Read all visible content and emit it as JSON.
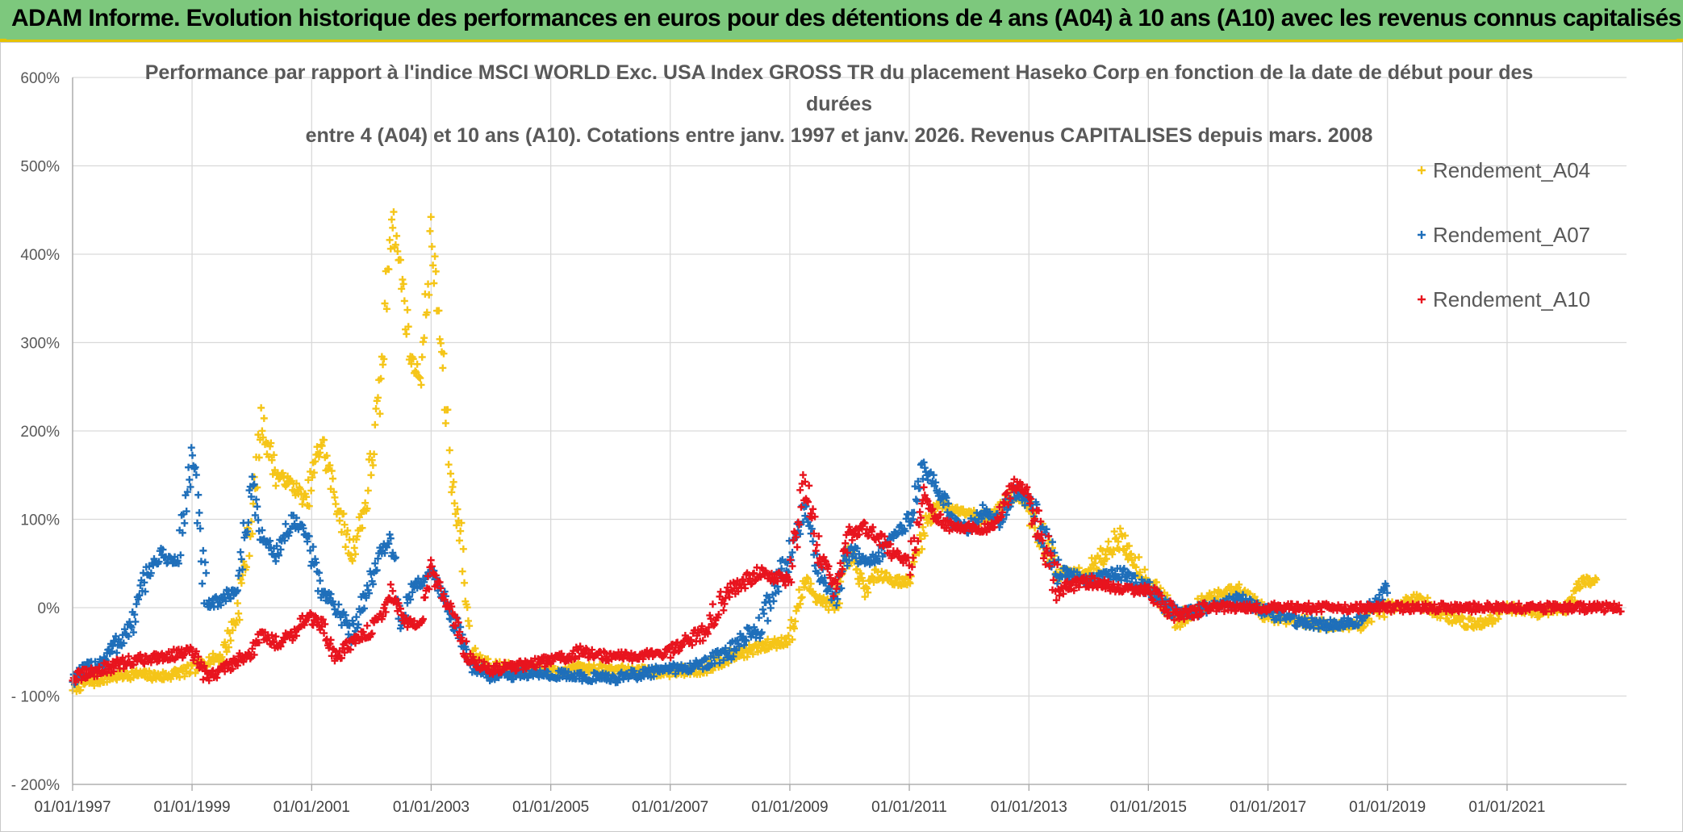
{
  "header": {
    "title": "ADAM Informe. Evolution historique des performances en euros pour des détentions de 4 ans (A04) à 10 ans (A10) avec les revenus connus capitalisés"
  },
  "chart_data": {
    "type": "scatter",
    "title_lines": [
      "Performance par rapport à l'indice MSCI WORLD Exc. USA Index GROSS TR  du placement Haseko Corp en fonction de la date de début pour des",
      "durées",
      "entre 4 (A04) et 10 ans (A10). Cotations entre janv. 1997 et janv. 2026. Revenus CAPITALISES depuis mars. 2008"
    ],
    "xlabel": "",
    "ylabel": "",
    "x_ticks": [
      "01/01/1997",
      "01/01/1999",
      "01/01/2001",
      "01/01/2003",
      "01/01/2005",
      "01/01/2007",
      "01/01/2009",
      "01/01/2011",
      "01/01/2013",
      "01/01/2015",
      "01/01/2017",
      "01/01/2019",
      "01/01/2021"
    ],
    "xlim": [
      "1997-01-01",
      "2023-01-01"
    ],
    "y_ticks": [
      "600%",
      "500%",
      "400%",
      "300%",
      "200%",
      "100%",
      "0%",
      "- 100%",
      "- 200%"
    ],
    "ylim": [
      -200,
      600
    ],
    "grid": true,
    "legend_position": "top-right",
    "series": [
      {
        "name": "Rendement_A04",
        "color": "#f5c518",
        "points": [
          [
            "1997-01",
            "-90"
          ],
          [
            "1997-07",
            "-80"
          ],
          [
            "1998-01",
            "-75"
          ],
          [
            "1998-07",
            "-78"
          ],
          [
            "1999-01",
            "-70"
          ],
          [
            "1999-04",
            "-60"
          ],
          [
            "1999-07",
            "-55"
          ],
          [
            "1999-10",
            "-10"
          ],
          [
            "2000-01",
            "100"
          ],
          [
            "2000-03",
            "210"
          ],
          [
            "2000-06",
            "150"
          ],
          [
            "2000-09",
            "140"
          ],
          [
            "2000-12",
            "120"
          ],
          [
            "2001-03",
            "190"
          ],
          [
            "2001-06",
            "120"
          ],
          [
            "2001-09",
            "60"
          ],
          [
            "2001-12",
            "120"
          ],
          [
            "2002-03",
            "250"
          ],
          [
            "2002-05",
            "450"
          ],
          [
            "2002-07",
            "380"
          ],
          [
            "2002-09",
            "280"
          ],
          [
            "2002-11",
            "260"
          ],
          [
            "2003-01",
            "420"
          ],
          [
            "2003-03",
            "300"
          ],
          [
            "2003-05",
            "150"
          ],
          [
            "2003-07",
            "80"
          ],
          [
            "2003-09",
            "-50"
          ],
          [
            "2004-01",
            "-65"
          ],
          [
            "2004-07",
            "-70"
          ],
          [
            "2005-01",
            "-72"
          ],
          [
            "2005-07",
            "-68"
          ],
          [
            "2006-01",
            "-70"
          ],
          [
            "2006-07",
            "-72"
          ],
          [
            "2007-01",
            "-73"
          ],
          [
            "2007-07",
            "-70"
          ],
          [
            "2008-01",
            "-55"
          ],
          [
            "2008-07",
            "-45"
          ],
          [
            "2009-01",
            "-35"
          ],
          [
            "2009-04",
            "30"
          ],
          [
            "2009-07",
            "10"
          ],
          [
            "2009-10",
            "0"
          ],
          [
            "2010-01",
            "60"
          ],
          [
            "2010-04",
            "20"
          ],
          [
            "2010-07",
            "40"
          ],
          [
            "2010-10",
            "30"
          ],
          [
            "2011-01",
            "30"
          ],
          [
            "2011-04",
            "90"
          ],
          [
            "2011-07",
            "120"
          ],
          [
            "2011-10",
            "110"
          ],
          [
            "2012-01",
            "110"
          ],
          [
            "2012-04",
            "100"
          ],
          [
            "2012-07",
            "110"
          ],
          [
            "2012-10",
            "130"
          ],
          [
            "2013-01",
            "110"
          ],
          [
            "2013-07",
            "40"
          ],
          [
            "2014-01",
            "40"
          ],
          [
            "2014-07",
            "80"
          ],
          [
            "2015-01",
            "30"
          ],
          [
            "2015-07",
            "-15"
          ],
          [
            "2016-01",
            "10"
          ],
          [
            "2016-07",
            "20"
          ],
          [
            "2017-01",
            "-10"
          ],
          [
            "2017-07",
            "-15"
          ],
          [
            "2018-01",
            "-20"
          ],
          [
            "2018-07",
            "-20"
          ],
          [
            "2019-01",
            "0"
          ],
          [
            "2019-07",
            "10"
          ],
          [
            "2020-01",
            "-10"
          ],
          [
            "2020-07",
            "-20"
          ],
          [
            "2021-01",
            "0"
          ],
          [
            "2021-07",
            "-5"
          ],
          [
            "2022-01",
            "0"
          ],
          [
            "2022-04",
            "30"
          ],
          [
            "2022-07",
            "30"
          ]
        ]
      },
      {
        "name": "Rendement_A07",
        "color": "#1f6fba",
        "points": [
          [
            "1997-01",
            "-80"
          ],
          [
            "1997-07",
            "-60"
          ],
          [
            "1998-01",
            "-20"
          ],
          [
            "1998-04",
            "40"
          ],
          [
            "1998-07",
            "60"
          ],
          [
            "1998-10",
            "50"
          ],
          [
            "1999-01",
            "170"
          ],
          [
            "1999-04",
            "0"
          ],
          [
            "1999-07",
            "10"
          ],
          [
            "1999-10",
            "20"
          ],
          [
            "2000-01",
            "140"
          ],
          [
            "2000-03",
            "80"
          ],
          [
            "2000-06",
            "60"
          ],
          [
            "2000-09",
            "100"
          ],
          [
            "2000-12",
            "80"
          ],
          [
            "2001-03",
            "20"
          ],
          [
            "2001-06",
            "0"
          ],
          [
            "2001-09",
            "-30"
          ],
          [
            "2001-12",
            "20"
          ],
          [
            "2002-03",
            "60"
          ],
          [
            "2002-05",
            "80"
          ],
          [
            "2002-07",
            "-20"
          ],
          [
            "2002-09",
            "20"
          ],
          [
            "2002-11",
            "30"
          ],
          [
            "2003-01",
            "40"
          ],
          [
            "2003-03",
            "20"
          ],
          [
            "2003-06",
            "-20"
          ],
          [
            "2003-09",
            "-65"
          ],
          [
            "2004-01",
            "-78"
          ],
          [
            "2004-07",
            "-75"
          ],
          [
            "2005-01",
            "-75"
          ],
          [
            "2005-07",
            "-78"
          ],
          [
            "2006-01",
            "-80"
          ],
          [
            "2006-07",
            "-75"
          ],
          [
            "2007-01",
            "-70"
          ],
          [
            "2007-07",
            "-65"
          ],
          [
            "2008-01",
            "-50"
          ],
          [
            "2008-07",
            "-20"
          ],
          [
            "2009-01",
            "60"
          ],
          [
            "2009-04",
            "110"
          ],
          [
            "2009-07",
            "40"
          ],
          [
            "2009-10",
            "10"
          ],
          [
            "2010-01",
            "70"
          ],
          [
            "2010-04",
            "50"
          ],
          [
            "2010-07",
            "60"
          ],
          [
            "2010-10",
            "80"
          ],
          [
            "2011-01",
            "100"
          ],
          [
            "2011-04",
            "160"
          ],
          [
            "2011-07",
            "130"
          ],
          [
            "2011-10",
            "100"
          ],
          [
            "2012-01",
            "90"
          ],
          [
            "2012-04",
            "110"
          ],
          [
            "2012-07",
            "100"
          ],
          [
            "2012-10",
            "130"
          ],
          [
            "2013-01",
            "120"
          ],
          [
            "2013-07",
            "40"
          ],
          [
            "2014-01",
            "30"
          ],
          [
            "2014-07",
            "40"
          ],
          [
            "2015-01",
            "20"
          ],
          [
            "2015-07",
            "-10"
          ],
          [
            "2016-01",
            "0"
          ],
          [
            "2016-07",
            "10"
          ],
          [
            "2017-01",
            "-5"
          ],
          [
            "2017-07",
            "-15"
          ],
          [
            "2018-01",
            "-20"
          ],
          [
            "2018-07",
            "-15"
          ],
          [
            "2019-01",
            "20"
          ]
        ]
      },
      {
        "name": "Rendement_A10",
        "color": "#e8141e",
        "points": [
          [
            "1997-01",
            "-80"
          ],
          [
            "1997-07",
            "-70"
          ],
          [
            "1998-01",
            "-60"
          ],
          [
            "1998-07",
            "-55"
          ],
          [
            "1999-01",
            "-50"
          ],
          [
            "1999-04",
            "-80"
          ],
          [
            "1999-07",
            "-70"
          ],
          [
            "1999-10",
            "-60"
          ],
          [
            "2000-01",
            "-50"
          ],
          [
            "2000-03",
            "-30"
          ],
          [
            "2000-06",
            "-40"
          ],
          [
            "2000-09",
            "-30"
          ],
          [
            "2000-12",
            "-10"
          ],
          [
            "2001-03",
            "-20"
          ],
          [
            "2001-06",
            "-55"
          ],
          [
            "2001-09",
            "-40"
          ],
          [
            "2001-12",
            "-30"
          ],
          [
            "2002-03",
            "-10"
          ],
          [
            "2002-05",
            "20"
          ],
          [
            "2002-07",
            "-10"
          ],
          [
            "2002-09",
            "-20"
          ],
          [
            "2002-11",
            "-20"
          ],
          [
            "2003-01",
            "40"
          ],
          [
            "2003-03",
            "20"
          ],
          [
            "2003-06",
            "-20"
          ],
          [
            "2003-09",
            "-60"
          ],
          [
            "2004-01",
            "-70"
          ],
          [
            "2004-07",
            "-65"
          ],
          [
            "2005-01",
            "-60"
          ],
          [
            "2005-07",
            "-50"
          ],
          [
            "2006-01",
            "-55"
          ],
          [
            "2006-07",
            "-55"
          ],
          [
            "2007-01",
            "-50"
          ],
          [
            "2007-07",
            "-30"
          ],
          [
            "2008-01",
            "20"
          ],
          [
            "2008-07",
            "40"
          ],
          [
            "2009-01",
            "30"
          ],
          [
            "2009-04",
            "150"
          ],
          [
            "2009-07",
            "60"
          ],
          [
            "2009-10",
            "20"
          ],
          [
            "2010-01",
            "80"
          ],
          [
            "2010-04",
            "90"
          ],
          [
            "2010-07",
            "80"
          ],
          [
            "2010-10",
            "60"
          ],
          [
            "2011-01",
            "50"
          ],
          [
            "2011-04",
            "120"
          ],
          [
            "2011-07",
            "100"
          ],
          [
            "2011-10",
            "90"
          ],
          [
            "2012-01",
            "90"
          ],
          [
            "2012-04",
            "90"
          ],
          [
            "2012-07",
            "100"
          ],
          [
            "2012-10",
            "140"
          ],
          [
            "2013-01",
            "130"
          ],
          [
            "2013-07",
            "20"
          ],
          [
            "2014-01",
            "30"
          ],
          [
            "2014-07",
            "20"
          ],
          [
            "2015-01",
            "20"
          ],
          [
            "2015-07",
            "-10"
          ],
          [
            "2016-01",
            "0"
          ],
          [
            "2016-07",
            "0"
          ],
          [
            "2017-01",
            "0"
          ],
          [
            "2018-01",
            "0"
          ],
          [
            "2019-01",
            "0"
          ],
          [
            "2020-01",
            "0"
          ],
          [
            "2021-01",
            "0"
          ],
          [
            "2022-01",
            "0"
          ],
          [
            "2022-12",
            "0"
          ]
        ]
      }
    ]
  }
}
